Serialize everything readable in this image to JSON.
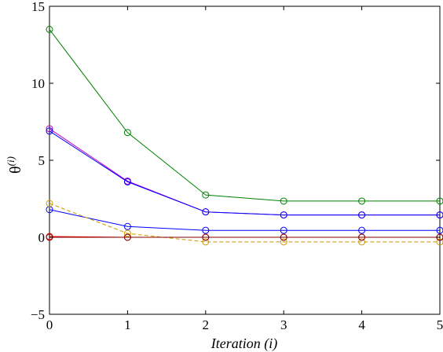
{
  "chart_data": {
    "type": "line",
    "xlabel": "Iteration (i)",
    "ylabel": "θ",
    "ylabel_sup": "(i)",
    "xlim": [
      0,
      5
    ],
    "ylim": [
      -5,
      15
    ],
    "xticks": [
      0,
      1,
      2,
      3,
      4,
      5
    ],
    "yticks": [
      -5,
      0,
      5,
      10,
      15
    ],
    "grid": false,
    "legend": "none",
    "x": [
      0,
      1,
      2,
      3,
      4,
      5
    ],
    "series": [
      {
        "color": "#008000",
        "marker": "circle",
        "dash": "solid",
        "values": [
          13.5,
          6.8,
          2.75,
          2.35,
          2.35,
          2.35
        ]
      },
      {
        "color": "#bf00bf",
        "marker": "circle",
        "dash": "solid",
        "values": [
          7.05,
          3.65,
          1.65,
          1.45,
          1.45,
          1.45
        ]
      },
      {
        "color": "#0000ff",
        "marker": "circle",
        "dash": "solid",
        "values": [
          6.9,
          3.6,
          1.65,
          1.45,
          1.45,
          1.45
        ]
      },
      {
        "color": "#0000ff",
        "marker": "circle",
        "dash": "solid",
        "values": [
          1.8,
          0.7,
          0.45,
          0.45,
          0.45,
          0.45
        ]
      },
      {
        "color": "#cc9900",
        "marker": "circle",
        "dash": "dashed",
        "values": [
          2.2,
          0.25,
          -0.3,
          -0.3,
          -0.3,
          -0.3
        ]
      },
      {
        "color": "#ff0000",
        "marker": "circle",
        "dash": "solid",
        "values": [
          0.05,
          0.0,
          0.0,
          0.0,
          0.0,
          0.0
        ]
      },
      {
        "color": "#800000",
        "marker": "circle",
        "dash": "solid",
        "values": [
          0.0,
          0.0,
          0.0,
          0.0,
          0.0,
          0.0
        ]
      }
    ]
  }
}
